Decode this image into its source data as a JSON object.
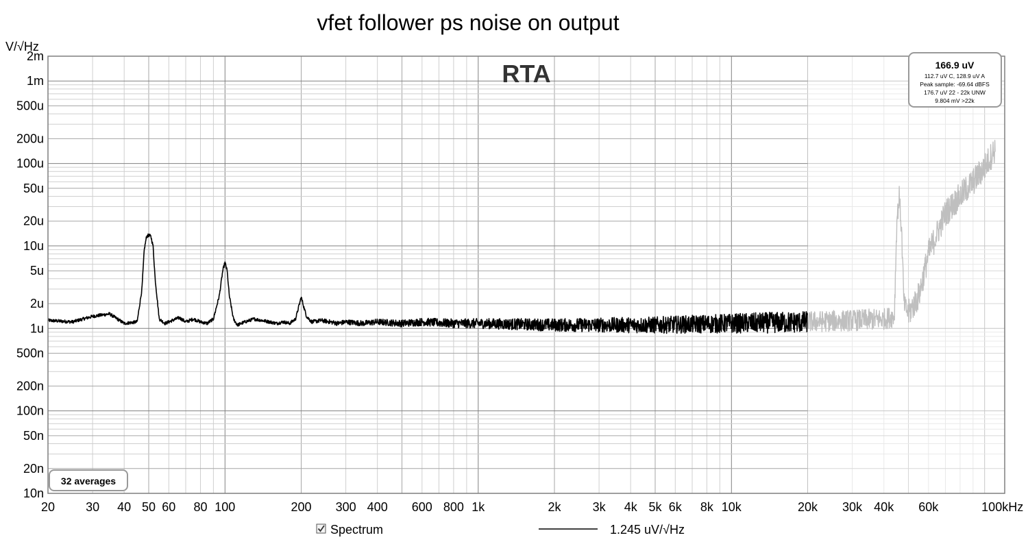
{
  "chart_data": {
    "type": "line",
    "title": "vfet follower ps noise on output",
    "overlay_label": "RTA",
    "ylabel": "V/√Hz",
    "x_scale": "log",
    "y_scale": "log",
    "xlim": [
      20,
      120000
    ],
    "ylim": [
      1e-08,
      0.002
    ],
    "x_ticks": [
      {
        "value": 20,
        "label": "20"
      },
      {
        "value": 30,
        "label": "30"
      },
      {
        "value": 40,
        "label": "40"
      },
      {
        "value": 50,
        "label": "50"
      },
      {
        "value": 60,
        "label": "60"
      },
      {
        "value": 80,
        "label": "80"
      },
      {
        "value": 100,
        "label": "100"
      },
      {
        "value": 200,
        "label": "200"
      },
      {
        "value": 300,
        "label": "300"
      },
      {
        "value": 400,
        "label": "400"
      },
      {
        "value": 600,
        "label": "600"
      },
      {
        "value": 800,
        "label": "800"
      },
      {
        "value": 1000,
        "label": "1k"
      },
      {
        "value": 2000,
        "label": "2k"
      },
      {
        "value": 3000,
        "label": "3k"
      },
      {
        "value": 4000,
        "label": "4k"
      },
      {
        "value": 5000,
        "label": "5k"
      },
      {
        "value": 6000,
        "label": "6k"
      },
      {
        "value": 8000,
        "label": "8k"
      },
      {
        "value": 10000,
        "label": "10k"
      },
      {
        "value": 20000,
        "label": "20k"
      },
      {
        "value": 30000,
        "label": "30k"
      },
      {
        "value": 40000,
        "label": "40k"
      },
      {
        "value": 60000,
        "label": "60k"
      },
      {
        "value": 100000,
        "label": "100kHz"
      }
    ],
    "y_ticks": [
      {
        "value": 0.002,
        "label": "2m"
      },
      {
        "value": 0.001,
        "label": "1m"
      },
      {
        "value": 0.0005,
        "label": "500u"
      },
      {
        "value": 0.0002,
        "label": "200u"
      },
      {
        "value": 0.0001,
        "label": "100u"
      },
      {
        "value": 5e-05,
        "label": "50u"
      },
      {
        "value": 2e-05,
        "label": "20u"
      },
      {
        "value": 1e-05,
        "label": "10u"
      },
      {
        "value": 5e-06,
        "label": "5u"
      },
      {
        "value": 2e-06,
        "label": "2u"
      },
      {
        "value": 1e-06,
        "label": "1u"
      },
      {
        "value": 5e-07,
        "label": "500n"
      },
      {
        "value": 2e-07,
        "label": "200n"
      },
      {
        "value": 1e-07,
        "label": "100n"
      },
      {
        "value": 5e-08,
        "label": "50n"
      },
      {
        "value": 2e-08,
        "label": "20n"
      },
      {
        "value": 1e-08,
        "label": "10n"
      }
    ],
    "grid": true,
    "shaded_region": {
      "from": 20000,
      "to": 120000
    },
    "series": [
      {
        "name": "Spectrum",
        "color": "#000000",
        "out_of_band_color": "#bfbfbf",
        "envelope": {
          "x": [
            20,
            25,
            30,
            35,
            40,
            45,
            47,
            48,
            49,
            50,
            51,
            52,
            53,
            55,
            58,
            62,
            66,
            70,
            75,
            80,
            85,
            90,
            95,
            98,
            100,
            102,
            104,
            108,
            112,
            120,
            130,
            140,
            150,
            160,
            170,
            180,
            190,
            200,
            205,
            210,
            220,
            240,
            260,
            280,
            300,
            350,
            400,
            500,
            600,
            800,
            1000,
            2000,
            5000,
            10000,
            20000,
            30000,
            40000,
            44000,
            45000,
            46000,
            47000,
            48000,
            50000,
            55000,
            60000,
            70000,
            80000,
            90000,
            100000,
            110000
          ],
          "y": [
            1.25e-06,
            1.2e-06,
            1.4e-06,
            1.5e-06,
            1.15e-06,
            1.2e-06,
            3e-06,
            9e-06,
            1.3e-05,
            1.35e-05,
            1.3e-05,
            1e-05,
            4e-06,
            1.3e-06,
            1.15e-06,
            1.25e-06,
            1.35e-06,
            1.2e-06,
            1.3e-06,
            1.2e-06,
            1.15e-06,
            1.3e-06,
            2.5e-06,
            5e-06,
            6.3e-06,
            5e-06,
            2.5e-06,
            1.3e-06,
            1.1e-06,
            1.2e-06,
            1.3e-06,
            1.25e-06,
            1.2e-06,
            1.15e-06,
            1.2e-06,
            1.15e-06,
            1.3e-06,
            2.4e-06,
            1.8e-06,
            1.4e-06,
            1.2e-06,
            1.25e-06,
            1.2e-06,
            1.15e-06,
            1.2e-06,
            1.15e-06,
            1.2e-06,
            1.15e-06,
            1.2e-06,
            1.15e-06,
            1.15e-06,
            1.1e-06,
            1.1e-06,
            1.15e-06,
            1.2e-06,
            1.25e-06,
            1.3e-06,
            1.4e-06,
            2e-05,
            4e-05,
            1.5e-05,
            2e-06,
            1.5e-06,
            2.5e-06,
            8e-06,
            2.5e-05,
            4e-05,
            6e-05,
            9e-05,
            0.00015
          ]
        }
      }
    ],
    "legend": [
      {
        "label": "Spectrum",
        "checked": true
      },
      {
        "label": "1.245 uV/√Hz"
      }
    ],
    "info_box": {
      "main": "166.9 uV",
      "lines": [
        "112.7 uV C, 128.9 uV A",
        "Peak sample: -69.64 dBFS",
        "176.7 uV 22 - 22k UNW",
        "9.804 mV >22k"
      ]
    },
    "averages_label": "32 averages"
  }
}
